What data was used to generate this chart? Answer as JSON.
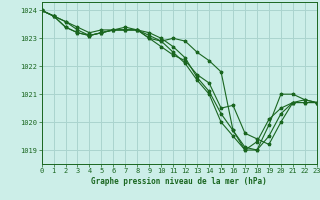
{
  "title": "Graphe pression niveau de la mer (hPa)",
  "background_color": "#cceee8",
  "grid_color": "#aad4ce",
  "line_color": "#1a6620",
  "xlim": [
    0,
    23
  ],
  "ylim": [
    1018.5,
    1024.3
  ],
  "yticks": [
    1019,
    1020,
    1021,
    1022,
    1023,
    1024
  ],
  "xticks": [
    0,
    1,
    2,
    3,
    4,
    5,
    6,
    7,
    8,
    9,
    10,
    11,
    12,
    13,
    14,
    15,
    16,
    17,
    18,
    19,
    20,
    21,
    22,
    23
  ],
  "series": [
    [
      1024.0,
      1023.8,
      1023.6,
      1023.4,
      1023.2,
      1023.3,
      1023.3,
      1023.3,
      1023.3,
      1023.1,
      1022.9,
      1022.5,
      1022.1,
      1021.5,
      1021.0,
      1020.0,
      1019.5,
      1019.0,
      1019.0,
      1019.9,
      1021.0,
      1021.0,
      1020.8,
      1020.7
    ],
    [
      1024.0,
      1023.8,
      1023.6,
      1023.3,
      1023.1,
      1023.2,
      1023.3,
      1023.3,
      1023.3,
      1023.2,
      1023.0,
      1022.7,
      1022.3,
      1021.6,
      1021.1,
      1020.3,
      1019.7,
      1019.0,
      1019.3,
      1020.1,
      1020.5,
      1020.7,
      1020.8,
      1020.7
    ],
    [
      1024.0,
      1023.8,
      1023.4,
      1023.2,
      1023.1,
      1023.2,
      1023.3,
      1023.3,
      1023.3,
      1023.0,
      1022.7,
      1022.4,
      1022.2,
      1021.7,
      1021.4,
      1020.5,
      1020.6,
      1019.6,
      1019.4,
      1019.2,
      1020.0,
      1020.7,
      1020.7,
      1020.7
    ],
    [
      1024.0,
      1023.8,
      1023.4,
      1023.2,
      1023.1,
      1023.2,
      1023.3,
      1023.4,
      1023.3,
      1023.0,
      1022.9,
      1023.0,
      1022.9,
      1022.5,
      1022.2,
      1021.8,
      1019.7,
      1019.1,
      1019.0,
      1019.5,
      1020.3,
      1020.7,
      1020.7,
      1020.7
    ]
  ]
}
